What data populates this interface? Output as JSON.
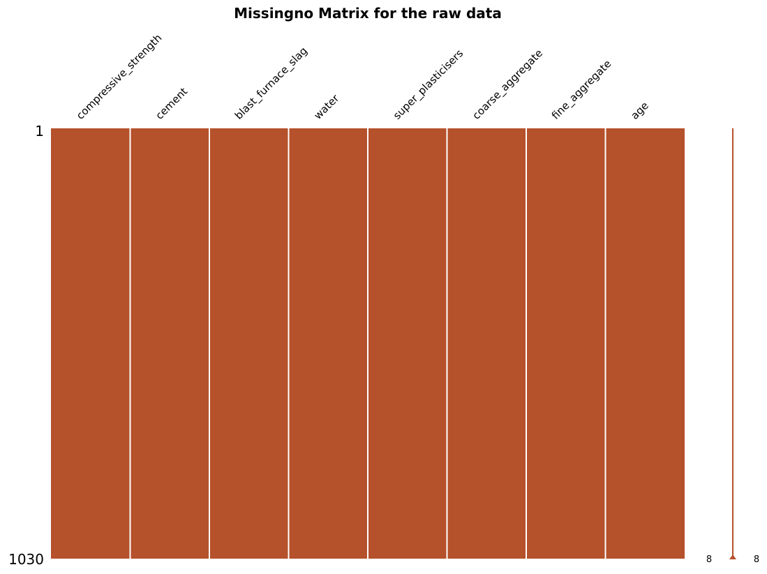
{
  "chart_data": {
    "type": "heatmap",
    "title": "Missingno Matrix for the raw data",
    "columns": [
      "compressive_strength",
      "cement",
      "blast_furnace_slag",
      "water",
      "super_plasticisers",
      "coarse_aggregate",
      "fine_aggregate",
      "age"
    ],
    "row_labels": [
      "1",
      "1030"
    ],
    "n_rows": 1030,
    "missing_counts": [
      0,
      0,
      0,
      0,
      0,
      0,
      0,
      0
    ],
    "completeness": {
      "min": 8,
      "max": 8,
      "min_label": "8",
      "max_label": "8"
    },
    "colors": {
      "filled": "#b5512b",
      "missing": "#ffffff",
      "separator": "#ffffff",
      "sparkline": "#b5512b"
    },
    "grid": false,
    "legend": "none"
  }
}
